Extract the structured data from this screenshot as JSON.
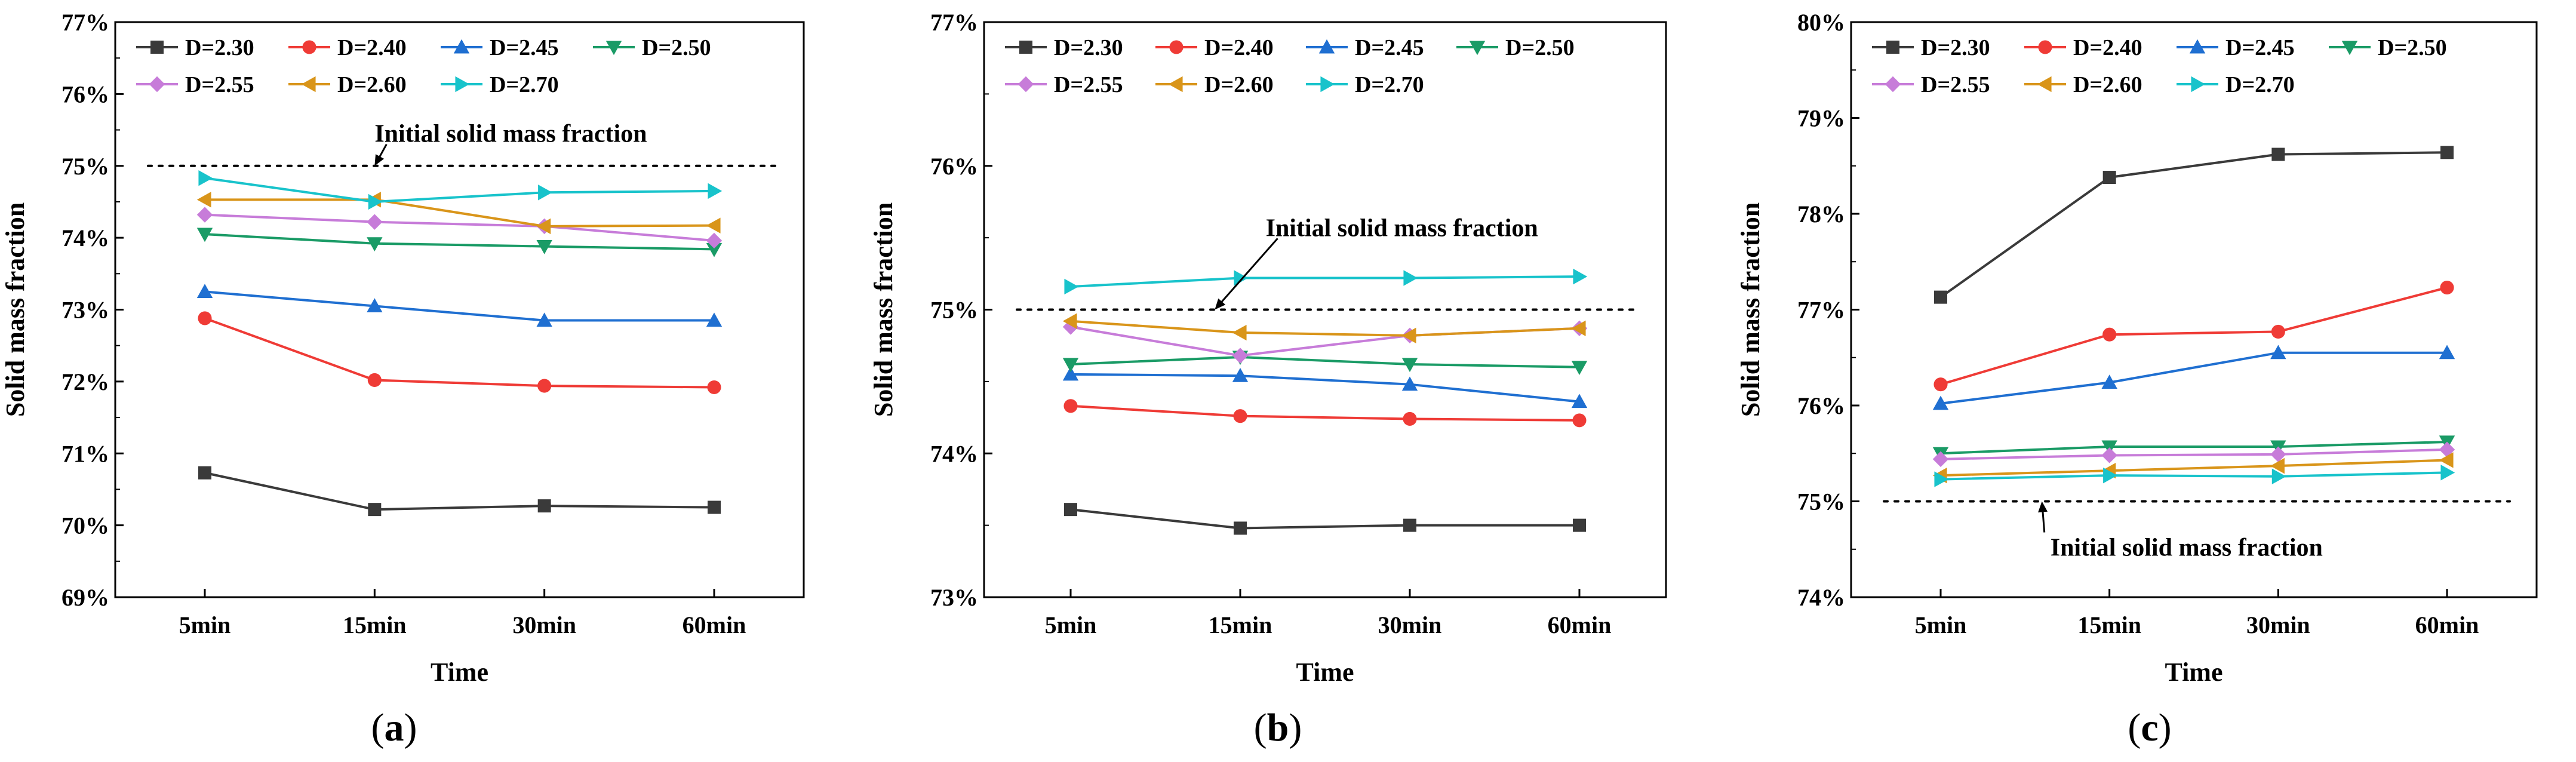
{
  "chart_data": [
    {
      "type": "line",
      "panel_label": "a",
      "caption_open": "(",
      "caption_close": ")",
      "xlabel": "Time",
      "ylabel": "Solid mass fraction",
      "categories": [
        "5min",
        "15min",
        "30min",
        "60min"
      ],
      "ylim": [
        69,
        77
      ],
      "yticks": [
        69,
        70,
        71,
        72,
        73,
        74,
        75,
        76,
        77
      ],
      "ytick_labels": [
        "69%",
        "70%",
        "71%",
        "72%",
        "73%",
        "74%",
        "75%",
        "76%",
        "77%"
      ],
      "reference_line": {
        "value": 75,
        "style": "dotted"
      },
      "annotation": {
        "text": "Initial solid mass fraction",
        "target_x": 1.0,
        "target_y": 75.0,
        "text_x": 1.0,
        "text_y": 75.45
      },
      "legend_columns": 4,
      "series": [
        {
          "name": "D=2.30",
          "color": "#3a3a3a",
          "marker": "square",
          "values": [
            70.73,
            70.22,
            70.27,
            70.25
          ]
        },
        {
          "name": "D=2.40",
          "color": "#ef3b36",
          "marker": "circle",
          "values": [
            72.88,
            72.02,
            71.94,
            71.92
          ]
        },
        {
          "name": "D=2.45",
          "color": "#1f6fd1",
          "marker": "triangle-up",
          "values": [
            73.25,
            73.05,
            72.85,
            72.85
          ]
        },
        {
          "name": "D=2.50",
          "color": "#1a9b66",
          "marker": "triangle-down",
          "values": [
            74.05,
            73.92,
            73.88,
            73.84
          ]
        },
        {
          "name": "D=2.55",
          "color": "#c77cd9",
          "marker": "diamond",
          "values": [
            74.32,
            74.22,
            74.16,
            73.96
          ]
        },
        {
          "name": "D=2.60",
          "color": "#d9951a",
          "marker": "triangle-left",
          "values": [
            74.53,
            74.53,
            74.16,
            74.17
          ]
        },
        {
          "name": "D=2.70",
          "color": "#18c3cb",
          "marker": "triangle-right",
          "values": [
            74.83,
            74.5,
            74.63,
            74.65
          ]
        }
      ]
    },
    {
      "type": "line",
      "panel_label": "b",
      "caption_open": "(",
      "caption_close": ")",
      "xlabel": "Time",
      "ylabel": "Solid mass fraction",
      "categories": [
        "5min",
        "15min",
        "30min",
        "60min"
      ],
      "ylim": [
        73,
        77
      ],
      "yticks": [
        73,
        74,
        75,
        76,
        77
      ],
      "ytick_labels": [
        "73%",
        "74%",
        "75%",
        "76%",
        "77%"
      ],
      "reference_line": {
        "value": 75,
        "style": "dotted"
      },
      "annotation": {
        "text": "Initial solid mass fraction",
        "target_x": 0.85,
        "target_y": 75.0,
        "text_x": 1.15,
        "text_y": 75.57
      },
      "legend_columns": 4,
      "series": [
        {
          "name": "D=2.30",
          "color": "#3a3a3a",
          "marker": "square",
          "values": [
            73.61,
            73.48,
            73.5,
            73.5
          ]
        },
        {
          "name": "D=2.40",
          "color": "#ef3b36",
          "marker": "circle",
          "values": [
            74.33,
            74.26,
            74.24,
            74.23
          ]
        },
        {
          "name": "D=2.45",
          "color": "#1f6fd1",
          "marker": "triangle-up",
          "values": [
            74.55,
            74.54,
            74.48,
            74.36
          ]
        },
        {
          "name": "D=2.50",
          "color": "#1a9b66",
          "marker": "triangle-down",
          "values": [
            74.62,
            74.67,
            74.62,
            74.6
          ]
        },
        {
          "name": "D=2.55",
          "color": "#c77cd9",
          "marker": "diamond",
          "values": [
            74.88,
            74.68,
            74.82,
            74.87
          ]
        },
        {
          "name": "D=2.60",
          "color": "#d9951a",
          "marker": "triangle-left",
          "values": [
            74.92,
            74.84,
            74.82,
            74.87
          ]
        },
        {
          "name": "D=2.70",
          "color": "#18c3cb",
          "marker": "triangle-right",
          "values": [
            75.16,
            75.22,
            75.22,
            75.23
          ]
        }
      ]
    },
    {
      "type": "line",
      "panel_label": "c",
      "caption_open": "(",
      "caption_close": ")",
      "xlabel": "Time",
      "ylabel": "Solid mass fraction",
      "categories": [
        "5min",
        "15min",
        "30min",
        "60min"
      ],
      "ylim": [
        74,
        80
      ],
      "yticks": [
        74,
        75,
        76,
        77,
        78,
        79,
        80
      ],
      "ytick_labels": [
        "74%",
        "75%",
        "76%",
        "77%",
        "78%",
        "79%",
        "80%"
      ],
      "reference_line": {
        "value": 75,
        "style": "dotted"
      },
      "annotation": {
        "text": "Initial solid mass fraction",
        "target_x": 0.6,
        "target_y": 75.0,
        "text_x": 0.65,
        "text_y": 74.52
      },
      "legend_columns": 4,
      "series": [
        {
          "name": "D=2.30",
          "color": "#3a3a3a",
          "marker": "square",
          "values": [
            77.13,
            78.38,
            78.62,
            78.64
          ]
        },
        {
          "name": "D=2.40",
          "color": "#ef3b36",
          "marker": "circle",
          "values": [
            76.22,
            76.74,
            76.77,
            77.23
          ]
        },
        {
          "name": "D=2.45",
          "color": "#1f6fd1",
          "marker": "triangle-up",
          "values": [
            76.02,
            76.24,
            76.55,
            76.55
          ]
        },
        {
          "name": "D=2.50",
          "color": "#1a9b66",
          "marker": "triangle-down",
          "values": [
            75.5,
            75.57,
            75.57,
            75.62
          ]
        },
        {
          "name": "D=2.55",
          "color": "#c77cd9",
          "marker": "diamond",
          "values": [
            75.44,
            75.48,
            75.49,
            75.54
          ]
        },
        {
          "name": "D=2.60",
          "color": "#d9951a",
          "marker": "triangle-left",
          "values": [
            75.27,
            75.32,
            75.37,
            75.43
          ]
        },
        {
          "name": "D=2.70",
          "color": "#18c3cb",
          "marker": "triangle-right",
          "values": [
            75.23,
            75.27,
            75.26,
            75.3
          ]
        }
      ]
    }
  ]
}
